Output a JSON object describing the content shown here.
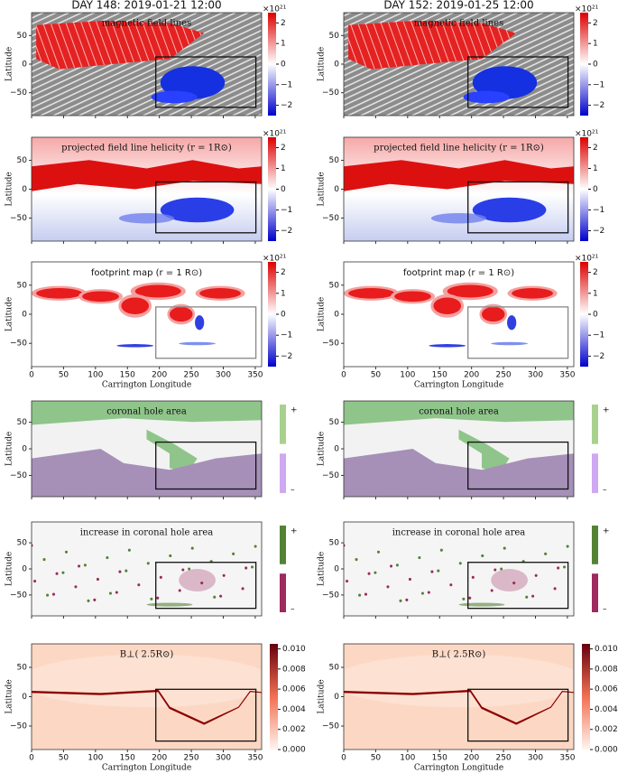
{
  "columns": [
    {
      "title": "DAY 148: 2019-01-21  12:00"
    },
    {
      "title": "DAY 152: 2019-01-25  12:00"
    }
  ],
  "axes": {
    "xlabel": "Carrington Longitude",
    "ylabel": "Latitude",
    "xlim": [
      0,
      360
    ],
    "ylim": [
      -90,
      90
    ],
    "xticks": [
      0,
      50,
      100,
      150,
      200,
      250,
      300,
      350
    ],
    "yticks": [
      {
        "value": -50,
        "label": "−50"
      },
      0,
      50
    ]
  },
  "rows": [
    {
      "label": "magnetic field lines"
    },
    {
      "label": "projected field line helicity (r = 1R⊙)"
    },
    {
      "label": "footprint map (r = 1 R⊙)"
    },
    {
      "label": "coronal hole area"
    },
    {
      "label": "increase in coronal hole area"
    },
    {
      "label": "B⊥( 2.5R⊙)"
    }
  ],
  "colorbars": {
    "helicity": {
      "exponent": "×10²¹",
      "clim": [
        -2.5,
        2.5
      ],
      "ticks": [
        {
          "value": -2,
          "label": "−2"
        },
        {
          "value": -1,
          "label": "−1"
        },
        0,
        1,
        2
      ]
    },
    "bperp": {
      "clim": [
        0,
        0.0105
      ],
      "ticks": [
        {
          "value": 0,
          "label": "0.000"
        },
        {
          "value": 0.002,
          "label": "0.002"
        },
        {
          "value": 0.004,
          "label": "0.004"
        },
        {
          "value": 0.006,
          "label": "0.006"
        },
        {
          "value": 0.008,
          "label": "0.008"
        },
        {
          "value": 0.01,
          "label": "0.010"
        }
      ]
    }
  },
  "legends": {
    "area": {
      "plus": {
        "label": "+",
        "color": "#a9d18e"
      },
      "minus": {
        "label": "–",
        "color": "#cfa8f2"
      }
    },
    "increase": {
      "plus": {
        "label": "+",
        "color": "#548235"
      },
      "minus": {
        "label": "–",
        "color": "#9e2a5e"
      }
    }
  }
}
